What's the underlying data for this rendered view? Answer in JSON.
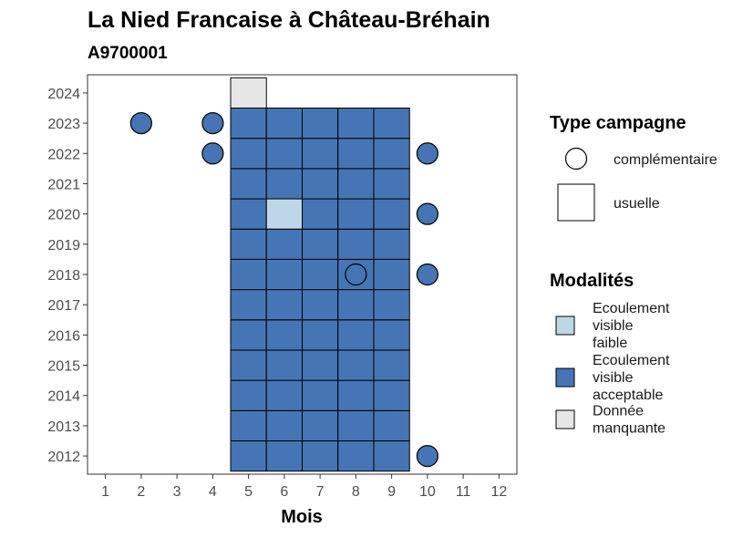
{
  "chart_data": {
    "type": "heatmap",
    "title": "La Nied Francaise à Château-Bréhain",
    "subtitle": "A9700001",
    "xlabel": "Mois",
    "ylabel": "",
    "x_ticks": [
      1,
      2,
      3,
      4,
      5,
      6,
      7,
      8,
      9,
      10,
      11,
      12
    ],
    "y_ticks": [
      2012,
      2013,
      2014,
      2015,
      2016,
      2017,
      2018,
      2019,
      2020,
      2021,
      2022,
      2023,
      2024
    ],
    "xlim": [
      0.5,
      12.5
    ],
    "ylim": [
      2011.4,
      2024.6
    ],
    "grid": false,
    "legend_position": "right",
    "colors": {
      "faible": "#bdd7e7",
      "acceptable": "#4575b4",
      "manquante": "#e6e6e6",
      "outline": "#000000"
    },
    "legend_type": {
      "title": "Type campagne",
      "items": [
        {
          "shape": "circle",
          "label": "complémentaire"
        },
        {
          "shape": "square",
          "label": "usuelle"
        }
      ]
    },
    "legend_modalites": {
      "title": "Modalités",
      "items": [
        {
          "key": "faible",
          "lines": [
            "Ecoulement",
            "visible",
            "faible"
          ]
        },
        {
          "key": "acceptable",
          "lines": [
            "Ecoulement",
            "visible",
            "acceptable"
          ]
        },
        {
          "key": "manquante",
          "lines": [
            "Donnée",
            "manquante"
          ]
        }
      ]
    },
    "usuelle_tiles": {
      "months": [
        5,
        6,
        7,
        8,
        9
      ],
      "years_from": 2012,
      "years_to": 2023,
      "default": "acceptable",
      "exceptions": [
        {
          "month": 6,
          "year": 2020,
          "modalite": "faible"
        }
      ],
      "extra": [
        {
          "month": 5,
          "year": 2024,
          "modalite": "manquante"
        }
      ]
    },
    "complementaire_points": [
      {
        "month": 2,
        "year": 2023,
        "modalite": "acceptable"
      },
      {
        "month": 4,
        "year": 2023,
        "modalite": "acceptable"
      },
      {
        "month": 4,
        "year": 2022,
        "modalite": "acceptable"
      },
      {
        "month": 10,
        "year": 2022,
        "modalite": "acceptable"
      },
      {
        "month": 10,
        "year": 2020,
        "modalite": "acceptable"
      },
      {
        "month": 8,
        "year": 2018,
        "modalite": "acceptable"
      },
      {
        "month": 10,
        "year": 2018,
        "modalite": "acceptable"
      },
      {
        "month": 10,
        "year": 2012,
        "modalite": "acceptable"
      }
    ]
  }
}
